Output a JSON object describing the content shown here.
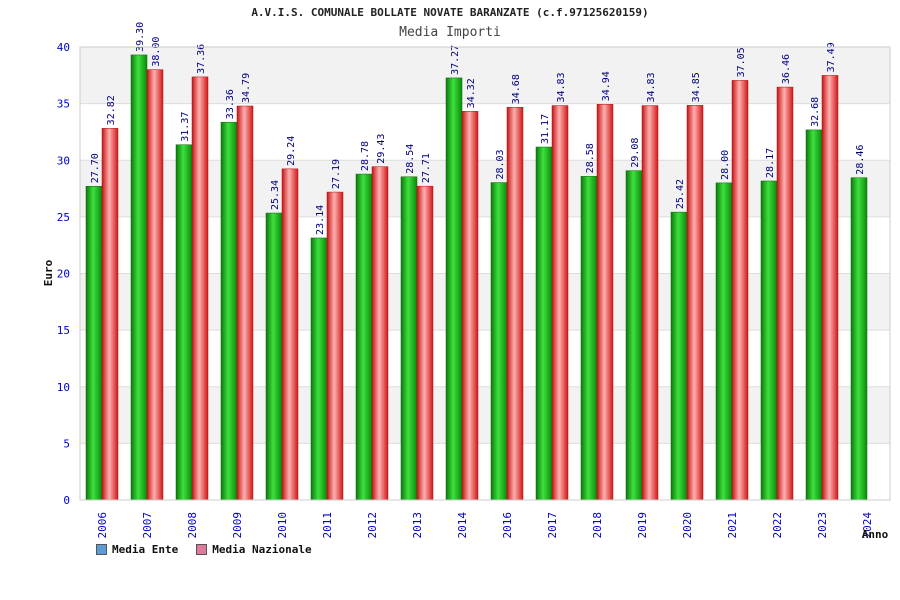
{
  "title": "A.V.I.S. COMUNALE BOLLATE NOVATE BARANZATE (c.f.97125620159)",
  "colors": {
    "ente": "#1fb51f",
    "nazionale": "#ee2a2a",
    "axis_text": "#0000cc",
    "band": "#f2f2f2",
    "label": "#000080"
  },
  "chart_data": {
    "type": "bar",
    "title": "Media Importi",
    "ylabel": "Euro",
    "xlabel": "Anno",
    "ylim": [
      0,
      40
    ],
    "yticks": [
      "0",
      "5",
      "10",
      "15",
      "20",
      "25",
      "30",
      "35",
      "40"
    ],
    "categories": [
      "2006",
      "2007",
      "2008",
      "2009",
      "2010",
      "2011",
      "2012",
      "2013",
      "2014",
      "2016",
      "2017",
      "2018",
      "2019",
      "2020",
      "2021",
      "2022",
      "2023",
      "2024"
    ],
    "series": [
      {
        "name": "Media Ente",
        "values": [
          27.7,
          39.3,
          31.37,
          33.36,
          25.34,
          23.14,
          28.78,
          28.54,
          37.27,
          28.03,
          31.17,
          28.58,
          29.08,
          25.42,
          28.0,
          28.17,
          32.68,
          28.46
        ],
        "labels": [
          "27.70",
          "39.30",
          "31.37",
          "33.36",
          "25.34",
          "23.14",
          "28.78",
          "28.54",
          "37.27",
          "28.03",
          "31.17",
          "28.58",
          "29.08",
          "25.42",
          "28.00",
          "28.17",
          "32.68",
          "28.46"
        ]
      },
      {
        "name": "Media Nazionale",
        "values": [
          32.82,
          38.0,
          37.36,
          34.79,
          29.24,
          27.19,
          29.43,
          27.71,
          34.32,
          34.68,
          34.83,
          34.94,
          34.83,
          34.85,
          37.05,
          36.46,
          37.49,
          null
        ],
        "labels": [
          "32.82",
          "38.00",
          "37.36",
          "34.79",
          "29.24",
          "27.19",
          "29.43",
          "27.71",
          "34.32",
          "34.68",
          "34.83",
          "34.94",
          "34.83",
          "34.85",
          "37.05",
          "36.46",
          "37.49",
          ""
        ]
      }
    ],
    "legend": {
      "items": [
        {
          "label": "Media Ente",
          "color": "#5b9bd5"
        },
        {
          "label": "Media Nazionale",
          "color": "#e07a9a"
        }
      ]
    }
  }
}
